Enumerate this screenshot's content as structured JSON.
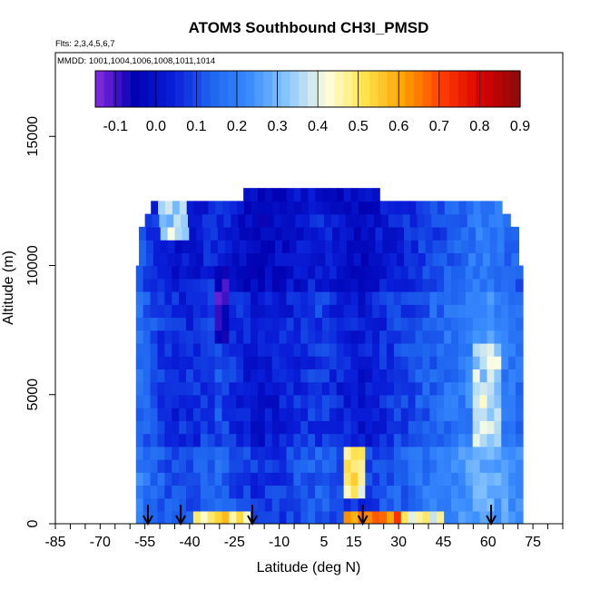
{
  "chart_data": {
    "type": "heatmap",
    "title": "ATOM3 Southbound CH3I_PMSD",
    "subtitle_flights": "Flts: 2,3,4,5,6,7",
    "subtitle_dates": "MMDD: 1001,1004,1006,1008,1011,1014",
    "xlabel": "Latitude (deg N)",
    "ylabel": "Altitude (m)",
    "xlim": [
      -85,
      85
    ],
    "ylim": [
      0,
      17500
    ],
    "x_ticks": [
      -85,
      -70,
      -55,
      -40,
      -25,
      -10,
      5,
      15,
      30,
      45,
      60,
      75
    ],
    "y_ticks": [
      0,
      5000,
      10000,
      15000
    ],
    "colorbar": {
      "min": -0.15,
      "max": 0.9,
      "labels": [
        "-0.1",
        "0.0",
        "0.1",
        "0.2",
        "0.3",
        "0.4",
        "0.5",
        "0.6",
        "0.7",
        "0.8",
        "0.9"
      ],
      "colors": [
        "#8a2be2",
        "#0000b0",
        "#0a1ed8",
        "#1e64f0",
        "#3a8cff",
        "#8cc8ff",
        "#ffffe0",
        "#ffe24a",
        "#ffa000",
        "#ff3c00",
        "#d80000",
        "#8b0a0a"
      ]
    },
    "flight_arrows_lat": [
      -54,
      -43,
      -19,
      18,
      61
    ],
    "data_extent": {
      "lat_range": [
        -58,
        70
      ],
      "alt_range": [
        0,
        13000
      ]
    },
    "grid": false,
    "legend": "colorbar-top"
  }
}
